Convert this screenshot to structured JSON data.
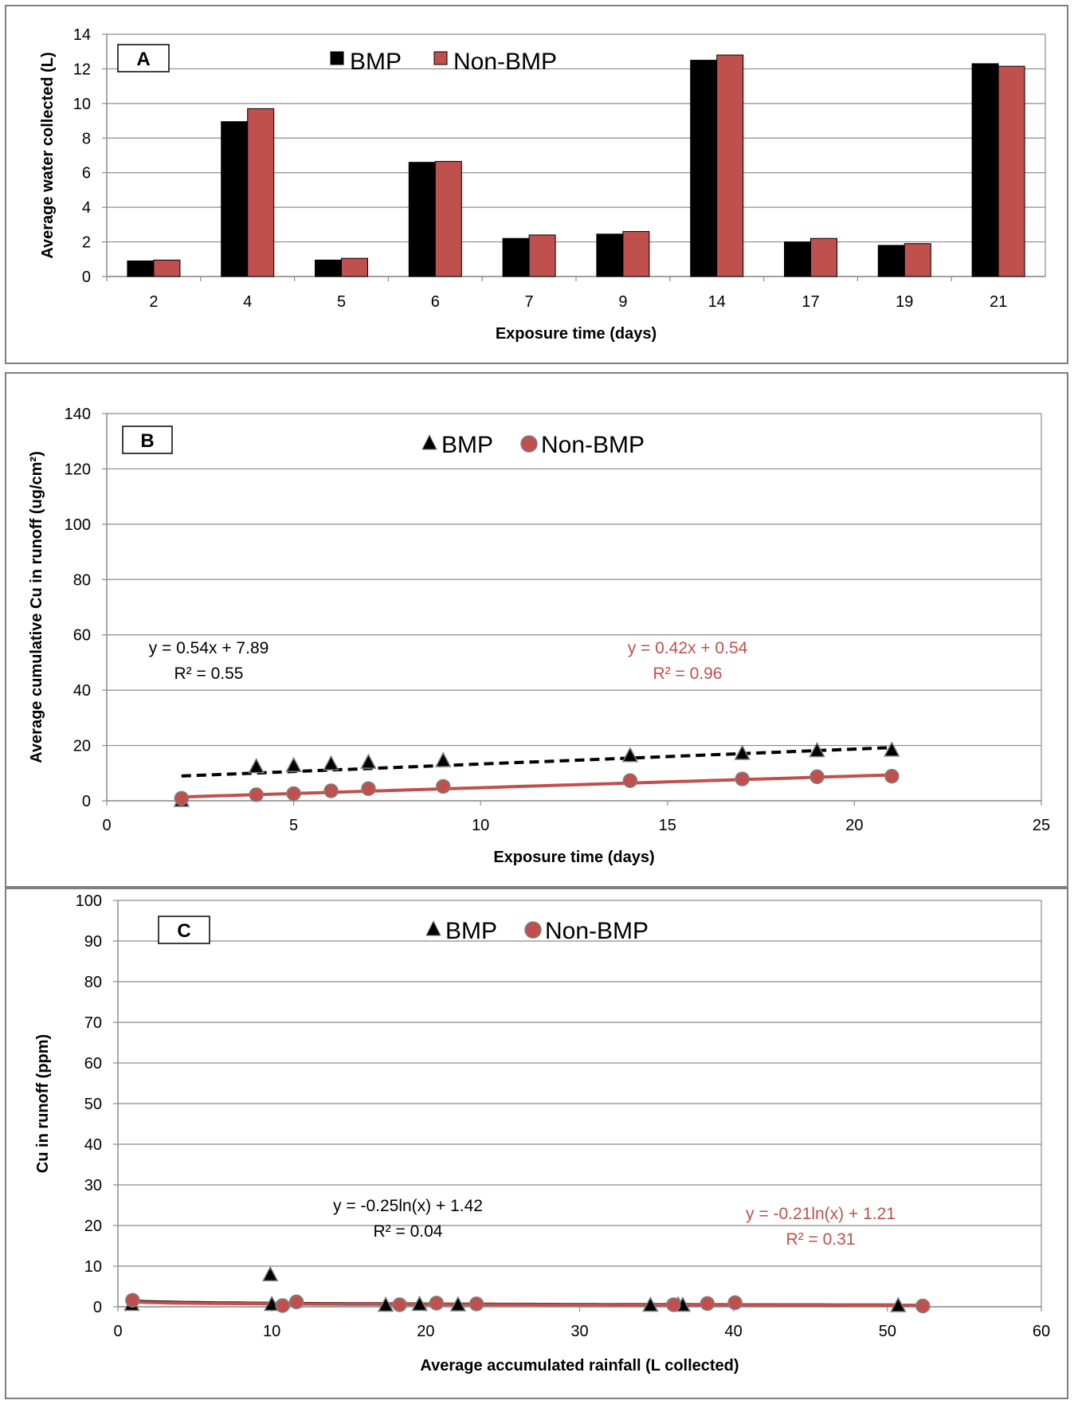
{
  "chart_data": [
    {
      "panel": "A",
      "type": "bar",
      "xlabel": "Exposure time (days)",
      "ylabel": "Average water collected (L)",
      "ylim": [
        0,
        14
      ],
      "yticks": [
        "0",
        "2",
        "4",
        "6",
        "8",
        "10",
        "12",
        "14"
      ],
      "categories": [
        "2",
        "4",
        "5",
        "6",
        "7",
        "9",
        "14",
        "17",
        "19",
        "21"
      ],
      "grid": true,
      "legend_position": "top-center",
      "series": [
        {
          "name": "BMP",
          "color": "#000000",
          "values": [
            0.9,
            8.95,
            0.95,
            6.6,
            2.2,
            2.45,
            12.5,
            2.0,
            1.8,
            12.3
          ]
        },
        {
          "name": "Non-BMP",
          "color": "#C0504D",
          "values": [
            0.95,
            9.7,
            1.05,
            6.65,
            2.4,
            2.6,
            12.8,
            2.2,
            1.9,
            12.15
          ]
        }
      ]
    },
    {
      "panel": "B",
      "type": "scatter",
      "xlabel": "Exposure time (days)",
      "ylabel": "Average cumulative Cu in runoff (ug/cm²)",
      "xlim": [
        0,
        25
      ],
      "ylim": [
        0,
        140
      ],
      "xticks": [
        "0",
        "5",
        "10",
        "15",
        "20",
        "25"
      ],
      "yticks": [
        "0",
        "20",
        "40",
        "60",
        "80",
        "100",
        "120",
        "140"
      ],
      "grid": true,
      "legend_position": "top-center",
      "series": [
        {
          "name": "BMP",
          "marker": "triangle",
          "color": "#000000",
          "x": [
            2,
            4,
            5,
            6,
            7,
            9,
            14,
            17,
            19,
            21
          ],
          "y": [
            0,
            12.2,
            12.6,
            13.2,
            13.8,
            14.4,
            16.2,
            17.0,
            18.0,
            18.2
          ],
          "trendline": {
            "kind": "linear",
            "slope": 0.54,
            "intercept": 7.89,
            "style": "dashed",
            "equation": "y = 0.54x + 7.89",
            "r2": "R² = 0.55"
          }
        },
        {
          "name": "Non-BMP",
          "marker": "circle",
          "color": "#C0504D",
          "x": [
            2,
            4,
            5,
            6,
            7,
            9,
            14,
            17,
            19,
            21
          ],
          "y": [
            0.9,
            2.2,
            2.6,
            3.6,
            4.4,
            5.2,
            7.3,
            7.9,
            8.7,
            8.9
          ],
          "trendline": {
            "kind": "linear",
            "slope": 0.42,
            "intercept": 0.54,
            "style": "solid",
            "equation": "y = 0.42x + 0.54",
            "r2": "R² = 0.96"
          }
        }
      ]
    },
    {
      "panel": "C",
      "type": "scatter",
      "xlabel": "Average accumulated rainfall (L collected)",
      "ylabel": "Cu in runoff (ppm)",
      "xlim": [
        0,
        60
      ],
      "ylim": [
        0,
        100
      ],
      "xticks": [
        "0",
        "10",
        "20",
        "30",
        "40",
        "50",
        "60"
      ],
      "yticks": [
        "0",
        "10",
        "20",
        "30",
        "40",
        "50",
        "60",
        "70",
        "80",
        "90",
        "100"
      ],
      "grid": true,
      "legend_position": "top-center",
      "series": [
        {
          "name": "BMP",
          "marker": "triangle",
          "color": "#000000",
          "x": [
            0.9,
            9.9,
            10.0,
            17.4,
            19.6,
            22.1,
            34.6,
            36.4,
            36.7,
            50.7
          ],
          "y": [
            0.5,
            7.8,
            0.5,
            0.3,
            0.5,
            0.4,
            0.3,
            0.4,
            0.3,
            0.2
          ],
          "trendline": {
            "kind": "log",
            "a": -0.25,
            "b": 1.42,
            "style": "solid",
            "equation": "y = -0.25ln(x) + 1.42",
            "r2": "R² = 0.04"
          }
        },
        {
          "name": "Non-BMP",
          "marker": "circle",
          "color": "#C0504D",
          "x": [
            0.95,
            10.7,
            11.6,
            18.3,
            20.7,
            23.3,
            36.1,
            38.3,
            40.1,
            52.3
          ],
          "y": [
            1.6,
            0.3,
            1.2,
            0.5,
            0.9,
            0.7,
            0.5,
            0.8,
            1.0,
            0.2
          ],
          "trendline": {
            "kind": "log",
            "a": -0.21,
            "b": 1.21,
            "style": "solid",
            "equation": "y = -0.21ln(x) + 1.21",
            "r2": "R² = 0.31"
          }
        }
      ]
    }
  ]
}
